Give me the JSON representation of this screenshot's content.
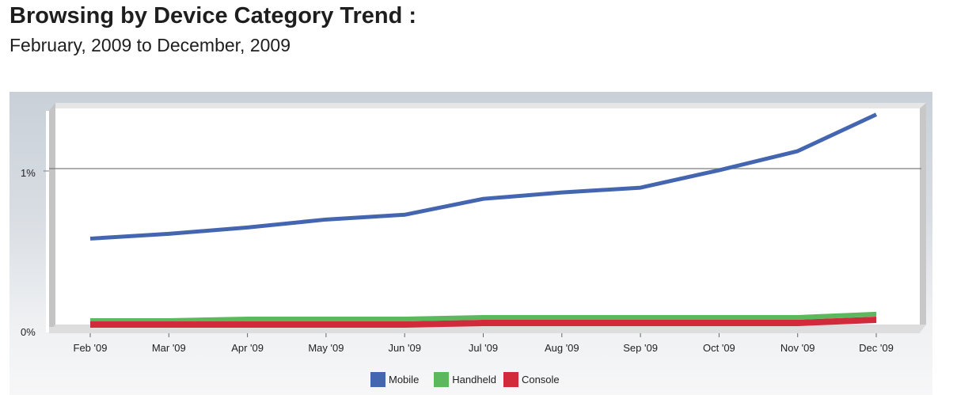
{
  "header": {
    "title": "Browsing by Device Category Trend :",
    "subtitle": "February, 2009 to December, 2009"
  },
  "chart_data": {
    "type": "area",
    "title": "Browsing by Device Category Trend :",
    "subtitle": "February, 2009 to December, 2009",
    "categories": [
      "Feb '09",
      "Mar '09",
      "Apr '09",
      "May '09",
      "Jun '09",
      "Jul '09",
      "Aug '09",
      "Sep '09",
      "Oct '09",
      "Nov '09",
      "Dec '09"
    ],
    "series": [
      {
        "name": "Mobile",
        "color": "#4466b0",
        "values": [
          0.56,
          0.59,
          0.63,
          0.68,
          0.71,
          0.81,
          0.85,
          0.88,
          0.99,
          1.11,
          1.34
        ]
      },
      {
        "name": "Handheld",
        "color": "#5cb85c",
        "values": [
          0.04,
          0.04,
          0.05,
          0.05,
          0.05,
          0.06,
          0.06,
          0.06,
          0.06,
          0.06,
          0.08
        ]
      },
      {
        "name": "Console",
        "color": "#d12a3a",
        "values": [
          0.02,
          0.02,
          0.02,
          0.02,
          0.02,
          0.03,
          0.03,
          0.03,
          0.03,
          0.03,
          0.05
        ]
      }
    ],
    "y_ticks": [
      "0%",
      "1%"
    ],
    "xlabel": "",
    "ylabel": "",
    "ylim": [
      0,
      1.4
    ],
    "grid": true,
    "legend_position": "bottom"
  },
  "legend": [
    {
      "label": "Mobile",
      "color": "#4466b0"
    },
    {
      "label": "Handheld",
      "color": "#5cb85c"
    },
    {
      "label": "Console",
      "color": "#d12a3a"
    }
  ]
}
